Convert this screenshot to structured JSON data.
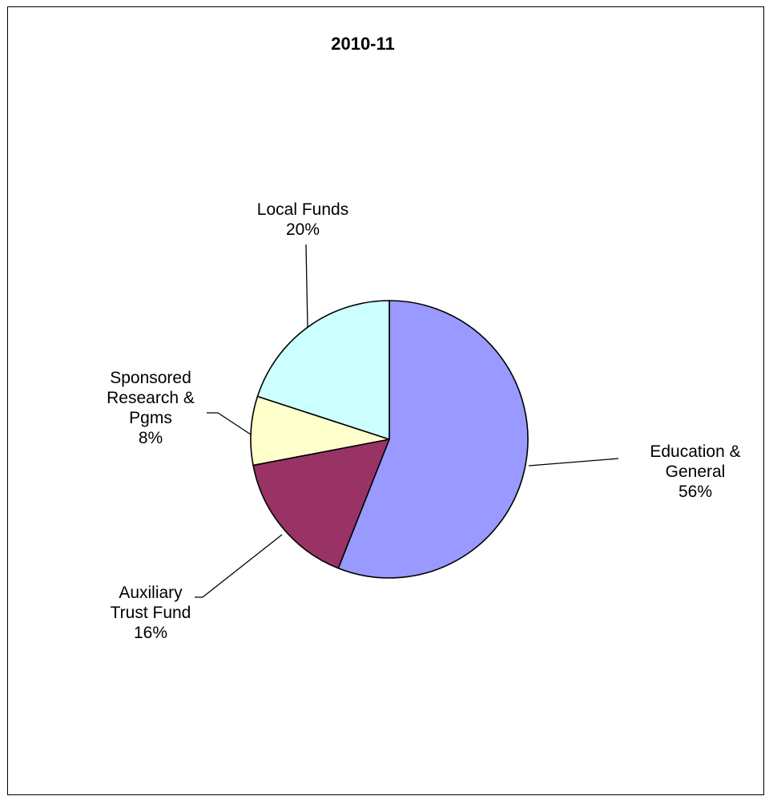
{
  "chart_data": {
    "type": "pie",
    "title": "2010-11",
    "slices": [
      {
        "label": "Education & General",
        "label_lines": [
          "Education &",
          "General"
        ],
        "value": 56,
        "value_label": "56%",
        "color": "#9999ff"
      },
      {
        "label": "Auxiliary Trust Fund",
        "label_lines": [
          "Auxiliary",
          "Trust Fund"
        ],
        "value": 16,
        "value_label": "16%",
        "color": "#993366"
      },
      {
        "label": "Sponsored Research & Pgms",
        "label_lines": [
          "Sponsored",
          "Research &",
          "Pgms"
        ],
        "value": 8,
        "value_label": "8%",
        "color": "#ffffcc"
      },
      {
        "label": "Local Funds",
        "label_lines": [
          "Local Funds"
        ],
        "value": 20,
        "value_label": "20%",
        "color": "#ccffff"
      }
    ],
    "start_angle": "12 o'clock",
    "direction": "clockwise",
    "legend": "none"
  }
}
